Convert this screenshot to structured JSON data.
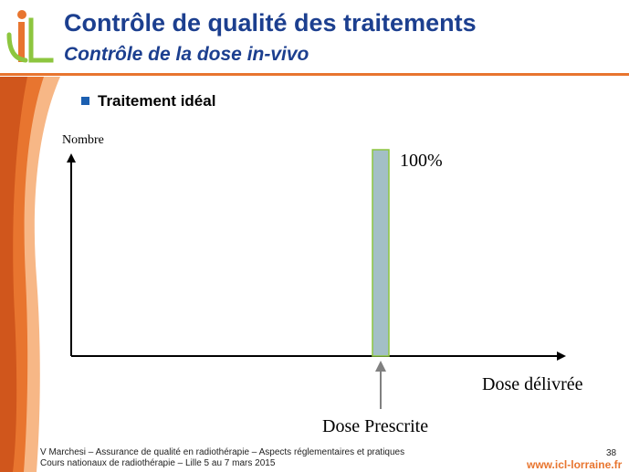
{
  "header": {
    "logo_icon": "icl-logo-icon",
    "title": "Contrôle de qualité des traitements",
    "subtitle": "Contrôle de la dose in-vivo"
  },
  "bullet": {
    "icon": "square-bullet-icon",
    "text": "Traitement idéal"
  },
  "chart_data": {
    "type": "bar",
    "ylabel": "Nombre",
    "xlabel": "Dose délivrée",
    "categories": [
      "Dose Prescrite"
    ],
    "values": [
      100
    ],
    "data_labels": [
      "100%"
    ],
    "annotation": "Dose Prescrite",
    "bar_color": "#a3bfc6",
    "bar_border_color": "#8dc63f",
    "axes_arrows": true,
    "grid": false,
    "legend": "none"
  },
  "footer": {
    "line1": "V Marchesi – Assurance de qualité en radiothérapie – Aspects réglementaires et pratiques",
    "line2": "Cours nationaux de radiothérapie – Lille 5 au 7 mars 2015",
    "page_number": "38",
    "url": "www.icl-lorraine.fr"
  },
  "colors": {
    "title": "#1c3f8f",
    "accent_orange": "#e8752f",
    "logo_green": "#8dc63f"
  }
}
